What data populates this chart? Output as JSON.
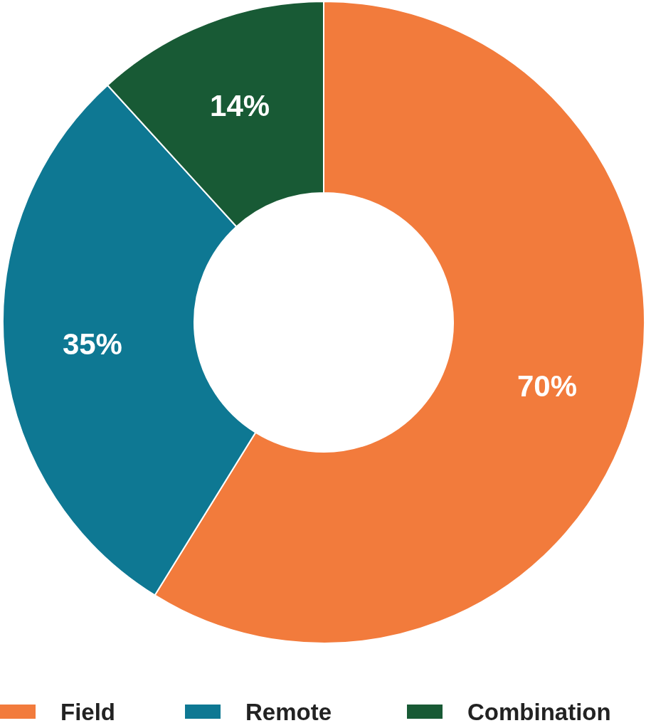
{
  "chart_data": {
    "type": "donut",
    "categories": [
      "Field",
      "Remote",
      "Combination"
    ],
    "values": [
      70,
      35,
      14
    ],
    "colors": [
      "#f27b3c",
      "#0e7893",
      "#185a35"
    ],
    "value_labels": [
      "70%",
      "35%",
      "14%"
    ],
    "legend": "bottom"
  }
}
